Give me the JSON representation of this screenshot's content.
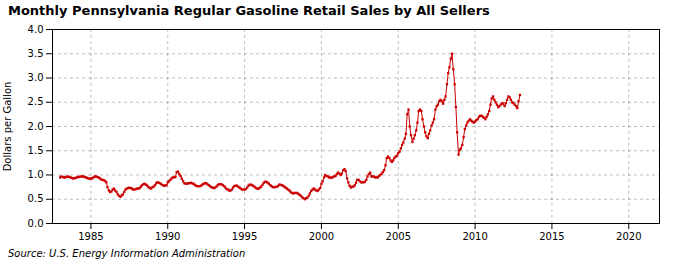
{
  "chart_data": {
    "type": "line",
    "title": "Monthly Pennsylvania Regular Gasoline Retail Sales by All Sellers",
    "ylabel": "Dollars per Gallon",
    "source": "Source: U.S. Energy Information Administration",
    "color": "#cc0000",
    "marker": "square",
    "line_style": "solid",
    "grid": true,
    "xlim": [
      1982.5,
      2022
    ],
    "ylim": [
      0.0,
      4.0
    ],
    "xticks": [
      1985,
      1990,
      1995,
      2000,
      2005,
      2010,
      2015,
      2020
    ],
    "yticks": [
      {
        "value": 0.0,
        "label": "0.0"
      },
      0.5,
      {
        "value": 1.0,
        "label": "1.0"
      },
      1.5,
      {
        "value": 2.0,
        "label": "2.0"
      },
      2.5,
      {
        "value": 3.0,
        "label": "3.0"
      },
      3.5,
      {
        "value": 4.0,
        "label": "4.0"
      }
    ],
    "x": [
      1983.0,
      1983.08,
      1983.17,
      1983.25,
      1983.33,
      1983.42,
      1983.5,
      1983.58,
      1983.67,
      1983.75,
      1983.83,
      1983.92,
      1984.0,
      1984.08,
      1984.17,
      1984.25,
      1984.33,
      1984.42,
      1984.5,
      1984.58,
      1984.67,
      1984.75,
      1984.83,
      1984.92,
      1985.0,
      1985.08,
      1985.17,
      1985.25,
      1985.33,
      1985.42,
      1985.5,
      1985.58,
      1985.67,
      1985.75,
      1985.83,
      1985.92,
      1986.0,
      1986.08,
      1986.17,
      1986.25,
      1986.33,
      1986.42,
      1986.5,
      1986.58,
      1986.67,
      1986.75,
      1986.83,
      1986.92,
      1987.0,
      1987.08,
      1987.17,
      1987.25,
      1987.33,
      1987.42,
      1987.5,
      1987.58,
      1987.67,
      1987.75,
      1987.83,
      1987.92,
      1988.0,
      1988.08,
      1988.17,
      1988.25,
      1988.33,
      1988.42,
      1988.5,
      1988.58,
      1988.67,
      1988.75,
      1988.83,
      1988.92,
      1989.0,
      1989.08,
      1989.17,
      1989.25,
      1989.33,
      1989.42,
      1989.5,
      1989.58,
      1989.67,
      1989.75,
      1989.83,
      1989.92,
      1990.0,
      1990.08,
      1990.17,
      1990.25,
      1990.33,
      1990.42,
      1990.5,
      1990.58,
      1990.67,
      1990.75,
      1990.83,
      1990.92,
      1991.0,
      1991.08,
      1991.17,
      1991.25,
      1991.33,
      1991.42,
      1991.5,
      1991.58,
      1991.67,
      1991.75,
      1991.83,
      1991.92,
      1992.0,
      1992.08,
      1992.17,
      1992.25,
      1992.33,
      1992.42,
      1992.5,
      1992.58,
      1992.67,
      1992.75,
      1992.83,
      1992.92,
      1993.0,
      1993.08,
      1993.17,
      1993.25,
      1993.33,
      1993.42,
      1993.5,
      1993.58,
      1993.67,
      1993.75,
      1993.83,
      1993.92,
      1994.0,
      1994.08,
      1994.17,
      1994.25,
      1994.33,
      1994.42,
      1994.5,
      1994.58,
      1994.67,
      1994.75,
      1994.83,
      1994.92,
      1995.0,
      1995.08,
      1995.17,
      1995.25,
      1995.33,
      1995.42,
      1995.5,
      1995.58,
      1995.67,
      1995.75,
      1995.83,
      1995.92,
      1996.0,
      1996.08,
      1996.17,
      1996.25,
      1996.33,
      1996.42,
      1996.5,
      1996.58,
      1996.67,
      1996.75,
      1996.83,
      1996.92,
      1997.0,
      1997.08,
      1997.17,
      1997.25,
      1997.33,
      1997.42,
      1997.5,
      1997.58,
      1997.67,
      1997.75,
      1997.83,
      1997.92,
      1998.0,
      1998.08,
      1998.17,
      1998.25,
      1998.33,
      1998.42,
      1998.5,
      1998.58,
      1998.67,
      1998.75,
      1998.83,
      1998.92,
      1999.0,
      1999.08,
      1999.17,
      1999.25,
      1999.33,
      1999.42,
      1999.5,
      1999.58,
      1999.67,
      1999.75,
      1999.83,
      1999.92,
      2000.0,
      2000.08,
      2000.17,
      2000.25,
      2000.33,
      2000.42,
      2000.5,
      2000.58,
      2000.67,
      2000.75,
      2000.83,
      2000.92,
      2001.0,
      2001.08,
      2001.17,
      2001.25,
      2001.33,
      2001.42,
      2001.5,
      2001.58,
      2001.67,
      2001.75,
      2001.83,
      2001.92,
      2002.0,
      2002.08,
      2002.17,
      2002.25,
      2002.33,
      2002.42,
      2002.5,
      2002.58,
      2002.67,
      2002.75,
      2002.83,
      2002.92,
      2003.0,
      2003.08,
      2003.17,
      2003.25,
      2003.33,
      2003.42,
      2003.5,
      2003.58,
      2003.67,
      2003.75,
      2003.83,
      2003.92,
      2004.0,
      2004.08,
      2004.17,
      2004.25,
      2004.33,
      2004.42,
      2004.5,
      2004.58,
      2004.67,
      2004.75,
      2004.83,
      2004.92,
      2005.0,
      2005.08,
      2005.17,
      2005.25,
      2005.33,
      2005.42,
      2005.5,
      2005.58,
      2005.67,
      2005.75,
      2005.83,
      2005.92,
      2006.0,
      2006.08,
      2006.17,
      2006.25,
      2006.33,
      2006.42,
      2006.5,
      2006.58,
      2006.67,
      2006.75,
      2006.83,
      2006.92,
      2007.0,
      2007.08,
      2007.17,
      2007.25,
      2007.33,
      2007.42,
      2007.5,
      2007.58,
      2007.67,
      2007.75,
      2007.83,
      2007.92,
      2008.0,
      2008.08,
      2008.17,
      2008.25,
      2008.33,
      2008.42,
      2008.5,
      2008.58,
      2008.67,
      2008.75,
      2008.83,
      2008.92,
      2009.0,
      2009.08,
      2009.17,
      2009.25,
      2009.33,
      2009.42,
      2009.5,
      2009.58,
      2009.67,
      2009.75,
      2009.83,
      2009.92,
      2010.0,
      2010.08,
      2010.17,
      2010.25,
      2010.33,
      2010.42,
      2010.5,
      2010.58,
      2010.67,
      2010.75,
      2010.83,
      2010.92,
      2011.0,
      2011.08,
      2011.17,
      2011.25,
      2011.33,
      2011.42,
      2011.5,
      2011.58,
      2011.67,
      2011.75,
      2011.83,
      2011.92,
      2012.0,
      2012.08,
      2012.17,
      2012.25,
      2012.33,
      2012.42,
      2012.5,
      2012.58,
      2012.67,
      2012.75,
      2012.83,
      2012.92
    ],
    "values": [
      0.95,
      0.97,
      0.96,
      0.95,
      0.95,
      0.96,
      0.97,
      0.96,
      0.95,
      0.94,
      0.93,
      0.93,
      0.94,
      0.95,
      0.96,
      0.96,
      0.97,
      0.97,
      0.97,
      0.96,
      0.95,
      0.94,
      0.93,
      0.92,
      0.93,
      0.93,
      0.95,
      0.97,
      0.97,
      0.96,
      0.95,
      0.93,
      0.91,
      0.9,
      0.89,
      0.88,
      0.85,
      0.75,
      0.68,
      0.65,
      0.66,
      0.7,
      0.72,
      0.68,
      0.65,
      0.6,
      0.57,
      0.55,
      0.58,
      0.6,
      0.65,
      0.7,
      0.72,
      0.73,
      0.74,
      0.73,
      0.72,
      0.7,
      0.7,
      0.71,
      0.72,
      0.72,
      0.73,
      0.76,
      0.79,
      0.81,
      0.82,
      0.8,
      0.78,
      0.75,
      0.73,
      0.72,
      0.75,
      0.76,
      0.79,
      0.83,
      0.85,
      0.84,
      0.83,
      0.81,
      0.79,
      0.78,
      0.78,
      0.79,
      0.85,
      0.87,
      0.9,
      0.93,
      0.95,
      0.95,
      0.96,
      1.06,
      1.07,
      1.02,
      0.98,
      0.92,
      0.87,
      0.83,
      0.82,
      0.82,
      0.83,
      0.83,
      0.84,
      0.83,
      0.82,
      0.8,
      0.78,
      0.77,
      0.77,
      0.77,
      0.78,
      0.8,
      0.82,
      0.83,
      0.83,
      0.81,
      0.79,
      0.77,
      0.75,
      0.74,
      0.73,
      0.74,
      0.76,
      0.79,
      0.81,
      0.81,
      0.81,
      0.79,
      0.77,
      0.74,
      0.71,
      0.7,
      0.68,
      0.68,
      0.7,
      0.74,
      0.77,
      0.78,
      0.78,
      0.76,
      0.74,
      0.72,
      0.7,
      0.7,
      0.7,
      0.71,
      0.74,
      0.78,
      0.8,
      0.8,
      0.79,
      0.77,
      0.75,
      0.73,
      0.72,
      0.72,
      0.74,
      0.76,
      0.8,
      0.84,
      0.86,
      0.86,
      0.84,
      0.82,
      0.79,
      0.77,
      0.75,
      0.75,
      0.75,
      0.76,
      0.77,
      0.8,
      0.8,
      0.79,
      0.78,
      0.76,
      0.74,
      0.72,
      0.7,
      0.68,
      0.65,
      0.63,
      0.62,
      0.63,
      0.63,
      0.63,
      0.61,
      0.59,
      0.57,
      0.54,
      0.52,
      0.5,
      0.52,
      0.53,
      0.57,
      0.62,
      0.67,
      0.7,
      0.72,
      0.7,
      0.68,
      0.67,
      0.7,
      0.73,
      0.82,
      0.87,
      0.95,
      1.0,
      0.98,
      0.97,
      0.95,
      0.95,
      0.94,
      0.96,
      0.97,
      0.98,
      1.02,
      1.05,
      1.03,
      1.0,
      1.03,
      1.1,
      1.12,
      1.08,
      0.93,
      0.85,
      0.78,
      0.74,
      0.76,
      0.76,
      0.79,
      0.84,
      0.9,
      0.9,
      0.87,
      0.85,
      0.85,
      0.85,
      0.86,
      0.9,
      0.97,
      1.02,
      1.05,
      0.97,
      0.97,
      0.97,
      0.95,
      0.95,
      0.95,
      0.98,
      1.0,
      1.03,
      1.06,
      1.1,
      1.2,
      1.35,
      1.38,
      1.35,
      1.3,
      1.27,
      1.3,
      1.35,
      1.38,
      1.4,
      1.45,
      1.48,
      1.55,
      1.62,
      1.67,
      1.75,
      1.85,
      2.25,
      2.35,
      2.0,
      1.82,
      1.68,
      1.75,
      1.82,
      1.92,
      2.08,
      2.32,
      2.35,
      2.32,
      2.15,
      2.0,
      1.88,
      1.8,
      1.76,
      1.85,
      1.92,
      2.02,
      2.08,
      2.15,
      2.35,
      2.42,
      2.45,
      2.52,
      2.55,
      2.52,
      2.47,
      2.55,
      2.62,
      2.87,
      3.1,
      3.22,
      3.4,
      3.5,
      3.18,
      2.87,
      2.4,
      1.88,
      1.42,
      1.52,
      1.55,
      1.62,
      1.78,
      1.95,
      2.02,
      2.08,
      2.12,
      2.15,
      2.12,
      2.1,
      2.08,
      2.1,
      2.13,
      2.15,
      2.2,
      2.22,
      2.22,
      2.2,
      2.18,
      2.15,
      2.2,
      2.25,
      2.32,
      2.45,
      2.58,
      2.62,
      2.55,
      2.5,
      2.45,
      2.4,
      2.42,
      2.45,
      2.48,
      2.47,
      2.42,
      2.48,
      2.55,
      2.62,
      2.6,
      2.55,
      2.5,
      2.48,
      2.45,
      2.42,
      2.38,
      2.52,
      2.65
    ]
  }
}
